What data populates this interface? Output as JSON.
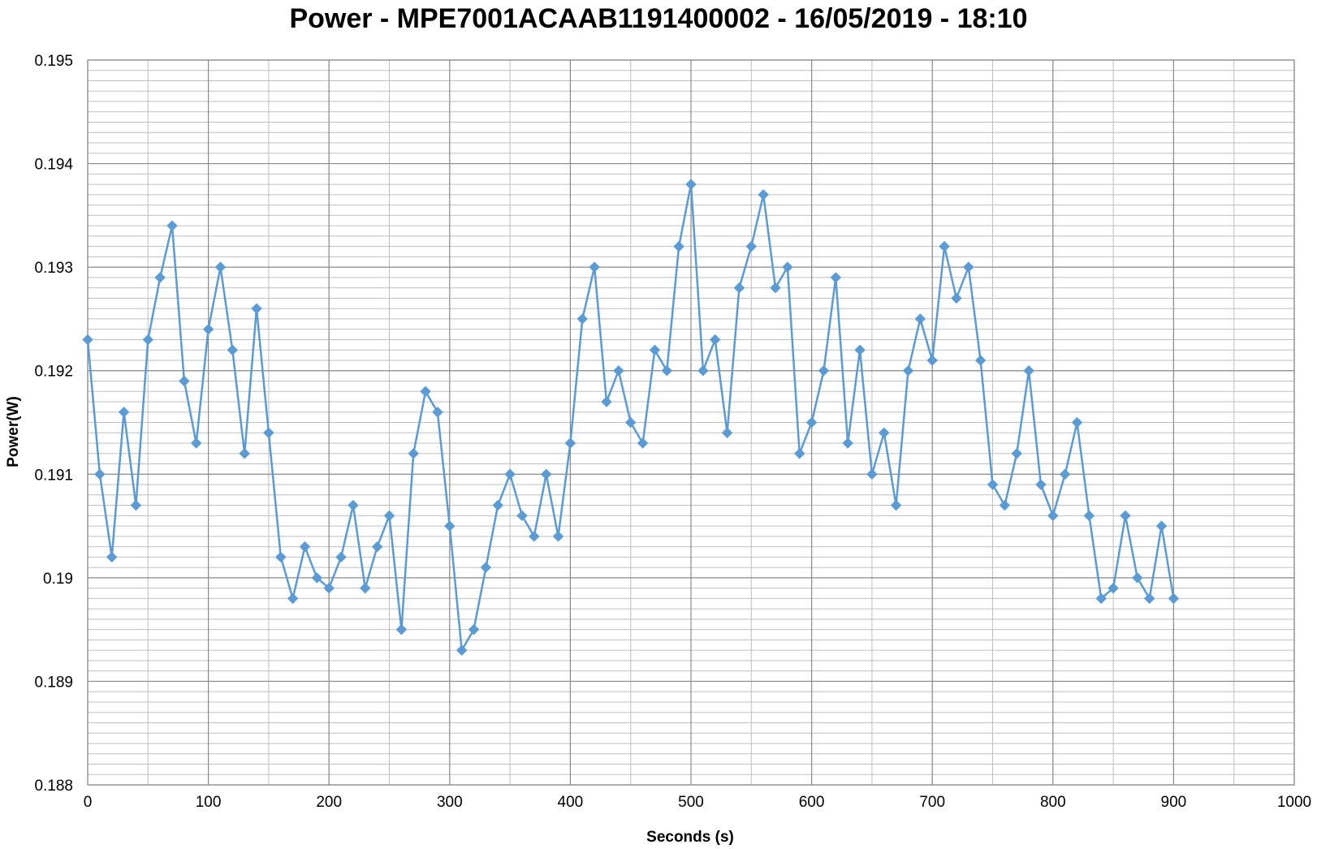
{
  "chart_data": {
    "type": "line",
    "title": "Power - MPE7001ACAAB1191400002 - 16/05/2019 - 18:10",
    "xlabel": "Seconds (s)",
    "ylabel": "Power(W)",
    "xlim": [
      0,
      1000
    ],
    "ylim": [
      0.188,
      0.195
    ],
    "x_ticks": [
      "0",
      "100",
      "200",
      "300",
      "400",
      "500",
      "600",
      "700",
      "800",
      "900",
      "1000"
    ],
    "y_ticks": [
      "0.188",
      "0.189",
      "0.19",
      "0.191",
      "0.192",
      "0.193",
      "0.194",
      "0.195"
    ],
    "grid": true,
    "marker": "diamond",
    "colors": {
      "series": "#5B9BD5",
      "grid": "#BFBFBF",
      "axis": "#8C8C8C"
    },
    "series": [
      {
        "x": [
          0,
          10,
          20,
          30,
          40,
          50,
          60,
          70,
          80,
          90,
          100,
          110,
          120,
          130,
          140,
          150,
          160,
          170,
          180,
          190,
          200,
          210,
          220,
          230,
          240,
          250,
          260,
          270,
          280,
          290,
          300,
          310,
          320,
          330,
          340,
          350,
          360,
          370,
          380,
          390,
          400,
          410,
          420,
          430,
          440,
          450,
          460,
          470,
          480,
          490,
          500,
          510,
          520,
          530,
          540,
          550,
          560,
          570,
          580,
          590,
          600,
          610,
          620,
          630,
          640,
          650,
          660,
          670,
          680,
          690,
          700,
          710,
          720,
          730,
          740,
          750,
          760,
          770,
          780,
          790,
          800,
          810,
          820,
          830,
          840,
          850,
          860,
          870,
          880,
          890,
          900
        ],
        "values": [
          0.1923,
          0.191,
          0.1902,
          0.1916,
          0.1907,
          0.1923,
          0.1929,
          0.1934,
          0.1919,
          0.1913,
          0.1924,
          0.193,
          0.1922,
          0.1912,
          0.1926,
          0.1914,
          0.1902,
          0.1898,
          0.1903,
          0.19,
          0.1899,
          0.1902,
          0.1907,
          0.1899,
          0.1903,
          0.1906,
          0.1895,
          0.1912,
          0.1918,
          0.1916,
          0.1905,
          0.1893,
          0.1895,
          0.1901,
          0.1907,
          0.191,
          0.1906,
          0.1904,
          0.191,
          0.1904,
          0.1913,
          0.1925,
          0.193,
          0.1917,
          0.192,
          0.1915,
          0.1913,
          0.1922,
          0.192,
          0.1932,
          0.1938,
          0.192,
          0.1923,
          0.1914,
          0.1928,
          0.1932,
          0.1937,
          0.1928,
          0.193,
          0.1912,
          0.1915,
          0.192,
          0.1929,
          0.1913,
          0.1922,
          0.191,
          0.1914,
          0.1907,
          0.192,
          0.1925,
          0.1921,
          0.1932,
          0.1927,
          0.193,
          0.1921,
          0.1909,
          0.1907,
          0.1912,
          0.192,
          0.1909,
          0.1906,
          0.191,
          0.1915,
          0.1906,
          0.1898,
          0.1899,
          0.1906,
          0.19,
          0.1898,
          0.1905,
          0.1898
        ]
      }
    ]
  }
}
